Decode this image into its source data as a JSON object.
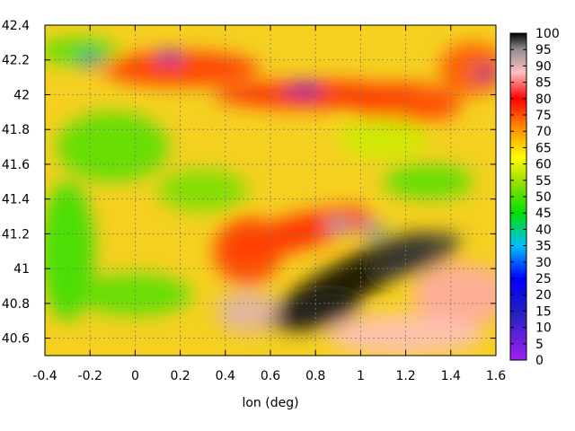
{
  "chart_data": {
    "type": "heatmap",
    "title": "",
    "xlabel": "lon (deg)",
    "ylabel": "",
    "xlim": [
      -0.4,
      1.6
    ],
    "ylim": [
      40.5,
      42.4
    ],
    "x_ticks": [
      -0.4,
      -0.2,
      0,
      0.2,
      0.4,
      0.6,
      0.8,
      1,
      1.2,
      1.4,
      1.6
    ],
    "y_ticks": [
      40.6,
      40.8,
      41,
      41.2,
      41.4,
      41.6,
      41.8,
      42,
      42.2,
      42.4
    ],
    "x_tick_labels": [
      "-0.4",
      "-0.2",
      "0",
      "0.2",
      "0.4",
      "0.6",
      "0.8",
      "1",
      "1.2",
      "1.4",
      "1.6"
    ],
    "y_tick_labels": [
      "40.6",
      "40.8",
      "41",
      "41.2",
      "41.4",
      "41.6",
      "41.8",
      "42",
      "42.2",
      "42.4"
    ],
    "grid": true,
    "colorbar": {
      "range": [
        0,
        100
      ],
      "ticks": [
        0,
        5,
        10,
        15,
        20,
        25,
        30,
        35,
        40,
        45,
        50,
        55,
        60,
        65,
        70,
        75,
        80,
        85,
        90,
        95,
        100
      ],
      "tick_labels": [
        "0",
        "5",
        "10",
        "15",
        "20",
        "25",
        "30",
        "35",
        "40",
        "45",
        "50",
        "55",
        "60",
        "65",
        "70",
        "75",
        "80",
        "85",
        "90",
        "95",
        "100"
      ],
      "stops": [
        {
          "value": 0,
          "color": "#a020f0"
        },
        {
          "value": 15,
          "color": "#2020c0"
        },
        {
          "value": 25,
          "color": "#0000ff"
        },
        {
          "value": 35,
          "color": "#00c0ff"
        },
        {
          "value": 45,
          "color": "#00e000"
        },
        {
          "value": 55,
          "color": "#a0e000"
        },
        {
          "value": 62,
          "color": "#ffff00"
        },
        {
          "value": 72,
          "color": "#ff8000"
        },
        {
          "value": 80,
          "color": "#ff0000"
        },
        {
          "value": 88,
          "color": "#ffc0c0"
        },
        {
          "value": 95,
          "color": "#909090"
        },
        {
          "value": 100,
          "color": "#000000"
        }
      ]
    },
    "features": [
      {
        "lon": 0.95,
        "lat": 40.93,
        "value": 100,
        "rx": 0.42,
        "ry": 0.12,
        "rot": -28
      },
      {
        "lon": 1.25,
        "lat": 41.08,
        "value": 98,
        "rx": 0.2,
        "ry": 0.1,
        "rot": -20
      },
      {
        "lon": 0.8,
        "lat": 40.75,
        "value": 99,
        "rx": 0.2,
        "ry": 0.1,
        "rot": -10
      },
      {
        "lon": 1.45,
        "lat": 40.85,
        "value": 87,
        "rx": 0.22,
        "ry": 0.18,
        "rot": 0
      },
      {
        "lon": 1.2,
        "lat": 40.62,
        "value": 88,
        "rx": 0.35,
        "ry": 0.12,
        "rot": 0
      },
      {
        "lon": 0.5,
        "lat": 40.75,
        "value": 90,
        "rx": 0.14,
        "ry": 0.12,
        "rot": 0
      },
      {
        "lon": 0.7,
        "lat": 41.2,
        "value": 78,
        "rx": 0.35,
        "ry": 0.1,
        "rot": -15
      },
      {
        "lon": 0.5,
        "lat": 41.1,
        "value": 76,
        "rx": 0.15,
        "ry": 0.2,
        "rot": 0
      },
      {
        "lon": 0.8,
        "lat": 42.0,
        "value": 78,
        "rx": 0.45,
        "ry": 0.08,
        "rot": 0
      },
      {
        "lon": 0.2,
        "lat": 42.15,
        "value": 77,
        "rx": 0.35,
        "ry": 0.1,
        "rot": 0
      },
      {
        "lon": 1.2,
        "lat": 41.95,
        "value": 76,
        "rx": 0.25,
        "ry": 0.12,
        "rot": 0
      },
      {
        "lon": 1.5,
        "lat": 42.15,
        "value": 75,
        "rx": 0.15,
        "ry": 0.15,
        "rot": 0
      },
      {
        "lon": -0.25,
        "lat": 42.25,
        "value": 50,
        "rx": 0.18,
        "ry": 0.08,
        "rot": 0
      },
      {
        "lon": -0.1,
        "lat": 41.7,
        "value": 50,
        "rx": 0.25,
        "ry": 0.2,
        "rot": 0
      },
      {
        "lon": -0.3,
        "lat": 41.1,
        "value": 48,
        "rx": 0.12,
        "ry": 0.4,
        "rot": 0
      },
      {
        "lon": 0.3,
        "lat": 41.45,
        "value": 52,
        "rx": 0.2,
        "ry": 0.12,
        "rot": 0
      },
      {
        "lon": 1.3,
        "lat": 41.5,
        "value": 50,
        "rx": 0.2,
        "ry": 0.1,
        "rot": 0
      },
      {
        "lon": 0.0,
        "lat": 40.85,
        "value": 50,
        "rx": 0.25,
        "ry": 0.12,
        "rot": 0
      },
      {
        "lon": 1.1,
        "lat": 41.75,
        "value": 58,
        "rx": 0.2,
        "ry": 0.12,
        "rot": 0
      },
      {
        "lon": 0.9,
        "lat": 41.25,
        "value": 35,
        "rx": 0.05,
        "ry": 0.03,
        "rot": 0
      },
      {
        "lon": 1.05,
        "lat": 41.23,
        "value": 30,
        "rx": 0.06,
        "ry": 0.03,
        "rot": 0
      },
      {
        "lon": 0.75,
        "lat": 42.03,
        "value": 22,
        "rx": 0.08,
        "ry": 0.03,
        "rot": 0
      },
      {
        "lon": -0.2,
        "lat": 42.2,
        "value": 20,
        "rx": 0.05,
        "ry": 0.03,
        "rot": 0
      },
      {
        "lon": 0.15,
        "lat": 42.22,
        "value": 25,
        "rx": 0.05,
        "ry": 0.03,
        "rot": 0
      },
      {
        "lon": 1.55,
        "lat": 42.12,
        "value": 15,
        "rx": 0.05,
        "ry": 0.03,
        "rot": 0
      }
    ]
  }
}
